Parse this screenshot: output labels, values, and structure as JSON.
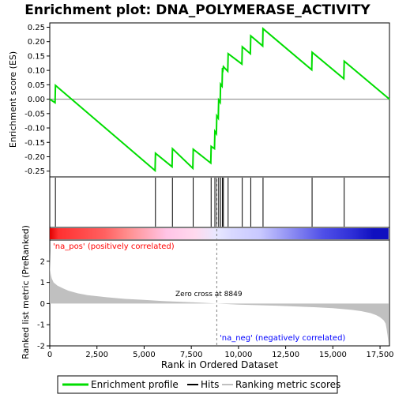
{
  "chart_data": {
    "type": "line",
    "title": "Enrichment plot: DNA_POLYMERASE_ACTIVITY",
    "xlabel": "Rank in Ordered Dataset",
    "ylabel_top": "Enrichment score (ES)",
    "ylabel_bottom": "Ranked list metric (PreRanked)",
    "xlim": [
      0,
      18000
    ],
    "xticks": [
      0,
      2500,
      5000,
      7500,
      10000,
      12500,
      15000,
      17500
    ],
    "es_ylim": [
      -0.27,
      0.265
    ],
    "es_yticks": [
      -0.25,
      -0.2,
      -0.15,
      -0.1,
      -0.05,
      0.0,
      0.05,
      0.1,
      0.15,
      0.2,
      0.25
    ],
    "metric_ylim": [
      -2,
      3
    ],
    "metric_yticks": [
      -2,
      -1,
      0,
      1,
      2
    ],
    "grid": false,
    "zero_cross_rank": 8849,
    "zero_cross_label": "Zero cross at 8849",
    "pos_label": "'na_pos' (positively correlated)",
    "neg_label": "'na_neg' (negatively correlated)",
    "hits": [
      300,
      5600,
      6500,
      7600,
      8550,
      8750,
      8850,
      8950,
      9050,
      9150,
      9200,
      9450,
      10200,
      10650,
      11300,
      13900,
      15600
    ],
    "es_profile": {
      "x": [
        0,
        280,
        300,
        5580,
        5600,
        6480,
        6500,
        7580,
        7600,
        8530,
        8550,
        8730,
        8750,
        8830,
        8850,
        8930,
        8950,
        9030,
        9050,
        9130,
        9150,
        9180,
        9200,
        9430,
        9450,
        10180,
        10200,
        10630,
        10650,
        11280,
        11300,
        13880,
        13900,
        15580,
        15600,
        18000
      ],
      "y": [
        0.0,
        -0.012,
        0.048,
        -0.248,
        -0.188,
        -0.235,
        -0.172,
        -0.24,
        -0.174,
        -0.222,
        -0.164,
        -0.172,
        -0.112,
        -0.12,
        -0.058,
        -0.066,
        -0.003,
        -0.011,
        0.052,
        0.045,
        0.108,
        0.103,
        0.113,
        0.097,
        0.158,
        0.122,
        0.182,
        0.158,
        0.22,
        0.185,
        0.245,
        0.102,
        0.163,
        0.071,
        0.132,
        0.0
      ]
    },
    "metric_curve": {
      "x": [
        0,
        20,
        50,
        100,
        200,
        400,
        700,
        1000,
        1500,
        2000,
        3000,
        4000,
        5000,
        6000,
        7000,
        8000,
        8849,
        10000,
        12000,
        14000,
        15000,
        16000,
        16500,
        17000,
        17300,
        17500,
        17700,
        17800,
        17850,
        17900,
        17950
      ],
      "y": [
        2.5,
        1.6,
        1.4,
        1.2,
        1.0,
        0.85,
        0.72,
        0.6,
        0.48,
        0.4,
        0.3,
        0.22,
        0.17,
        0.12,
        0.08,
        0.04,
        0.0,
        -0.05,
        -0.1,
        -0.17,
        -0.22,
        -0.3,
        -0.36,
        -0.45,
        -0.55,
        -0.65,
        -0.8,
        -0.95,
        -1.2,
        -1.5,
        -1.9
      ]
    },
    "legend": [
      "Enrichment profile",
      "Hits",
      "Ranking metric scores"
    ],
    "colors": {
      "profile": "#00dd00",
      "hits": "#000000",
      "metric": "#c0c0c0",
      "pos_text": "#ff0000",
      "neg_text": "#0000ff"
    },
    "heat_band": {
      "stops": [
        {
          "x": 0,
          "color": "#e00000"
        },
        {
          "x": 450,
          "color": "#ff3030"
        },
        {
          "x": 2900,
          "color": "#ff6060"
        },
        {
          "x": 4200,
          "color": "#ff9090"
        },
        {
          "x": 6200,
          "color": "#ffc4e6"
        },
        {
          "x": 7700,
          "color": "#ffd9ee"
        },
        {
          "x": 8850,
          "color": "#e8e8ff"
        },
        {
          "x": 9700,
          "color": "#d8d8ff"
        },
        {
          "x": 11200,
          "color": "#c8c8ff"
        },
        {
          "x": 13200,
          "color": "#8080f0"
        },
        {
          "x": 14500,
          "color": "#5050e8"
        },
        {
          "x": 16000,
          "color": "#3030d8"
        },
        {
          "x": 17200,
          "color": "#1010c0"
        }
      ]
    }
  }
}
